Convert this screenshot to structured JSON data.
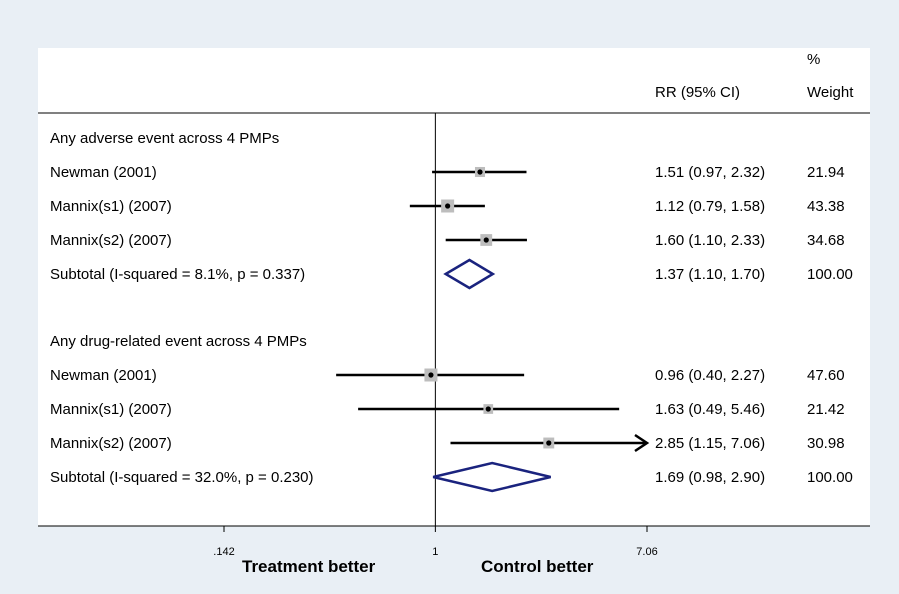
{
  "chart_data": {
    "type": "forest",
    "scale": "log",
    "xlim": [
      0.142,
      7.06
    ],
    "x_ticks": [
      {
        "value": 0.142,
        "label": ".142"
      },
      {
        "value": 1,
        "label": "1"
      },
      {
        "value": 7.06,
        "label": "7.06"
      }
    ],
    "header": {
      "rr": "RR (95% CI)",
      "weight_top": "%",
      "weight": "Weight"
    },
    "groups": [
      {
        "title": "Any adverse event across 4 PMPs",
        "studies": [
          {
            "label": "Newman (2001)",
            "rr": 1.51,
            "lo": 0.97,
            "hi": 2.32,
            "rr_text": "1.51 (0.97, 2.32)",
            "weight_text": "21.94"
          },
          {
            "label": "Mannix(s1) (2007)",
            "rr": 1.12,
            "lo": 0.79,
            "hi": 1.58,
            "rr_text": "1.12 (0.79, 1.58)",
            "weight_text": "43.38"
          },
          {
            "label": "Mannix(s2) (2007)",
            "rr": 1.6,
            "lo": 1.1,
            "hi": 2.33,
            "rr_text": "1.60 (1.10, 2.33)",
            "weight_text": "34.68"
          }
        ],
        "subtotal": {
          "label": "Subtotal  (I-squared = 8.1%, p = 0.337)",
          "rr": 1.37,
          "lo": 1.1,
          "hi": 1.7,
          "rr_text": "1.37 (1.10, 1.70)",
          "weight_text": "100.00"
        }
      },
      {
        "title": "Any drug-related event across 4 PMPs",
        "studies": [
          {
            "label": "Newman (2001)",
            "rr": 0.96,
            "lo": 0.4,
            "hi": 2.27,
            "rr_text": "0.96 (0.40, 2.27)",
            "weight_text": "47.60"
          },
          {
            "label": "Mannix(s1) (2007)",
            "rr": 1.63,
            "lo": 0.49,
            "hi": 5.46,
            "rr_text": "1.63 (0.49, 5.46)",
            "weight_text": "21.42"
          },
          {
            "label": "Mannix(s2) (2007)",
            "rr": 2.85,
            "lo": 1.15,
            "hi": 7.06,
            "rr_text": "2.85 (1.15, 7.06)",
            "weight_text": "30.98",
            "arrow": true
          }
        ],
        "subtotal": {
          "label": "Subtotal  (I-squared = 32.0%, p = 0.230)",
          "rr": 1.69,
          "lo": 0.98,
          "hi": 2.9,
          "rr_text": "1.69 (0.98, 2.90)",
          "weight_text": "100.00"
        }
      }
    ],
    "footer": {
      "left": "Treatment better",
      "right": "Control better"
    },
    "colors": {
      "background": "#e9eff5",
      "panel": "#ffffff",
      "diamond": "#1a237e",
      "marker_box": "#bdbdbd",
      "line": "#000000"
    }
  }
}
